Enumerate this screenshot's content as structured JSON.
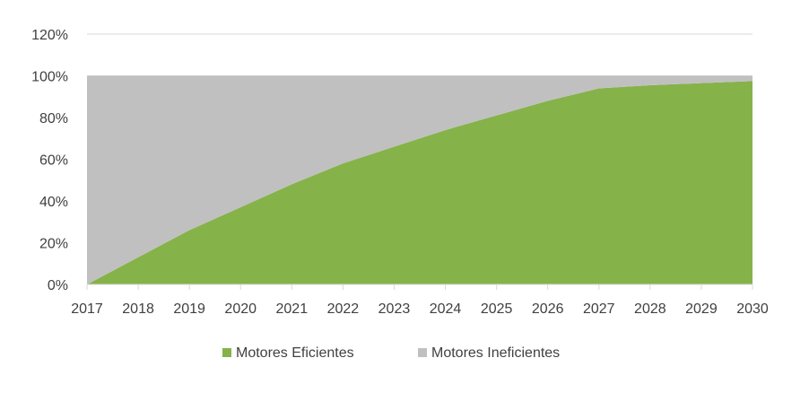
{
  "chart_data": {
    "type": "area",
    "stacked": true,
    "x": [
      "2017",
      "2018",
      "2019",
      "2020",
      "2021",
      "2022",
      "2023",
      "2024",
      "2025",
      "2026",
      "2027",
      "2028",
      "2029",
      "2030"
    ],
    "series": [
      {
        "name": "Motores Eficientes",
        "color": "#86b24a",
        "values": [
          0,
          0.13,
          0.26,
          0.37,
          0.48,
          0.58,
          0.66,
          0.74,
          0.81,
          0.88,
          0.94,
          0.955,
          0.965,
          0.975
        ]
      },
      {
        "name": "Motores Ineficientes",
        "color": "#c0c0c0",
        "values": [
          1,
          0.87,
          0.74,
          0.63,
          0.52,
          0.42,
          0.34,
          0.26,
          0.19,
          0.12,
          0.06,
          0.045,
          0.035,
          0.025
        ]
      }
    ],
    "yticks": [
      "0%",
      "20%",
      "40%",
      "60%",
      "80%",
      "100%",
      "120%"
    ],
    "ylim": [
      0,
      1.2
    ],
    "grid": true,
    "legend_position": "bottom",
    "title": "",
    "xlabel": "",
    "ylabel": ""
  }
}
